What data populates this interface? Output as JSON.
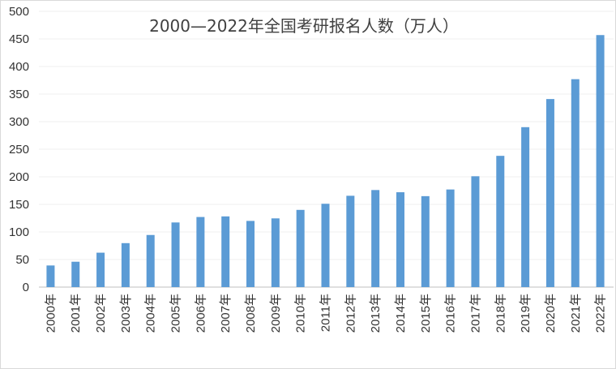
{
  "chart_data": {
    "type": "bar",
    "title": "2000—2022年全国考研报名人数（万人）",
    "xlabel": "",
    "ylabel": "",
    "ylim": [
      0,
      500
    ],
    "yticks": [
      0,
      50,
      100,
      150,
      200,
      250,
      300,
      350,
      400,
      450,
      500
    ],
    "grid": true,
    "bar_color": "#5B9BD5",
    "categories": [
      "2000年",
      "2001年",
      "2002年",
      "2003年",
      "2004年",
      "2005年",
      "2006年",
      "2007年",
      "2008年",
      "2009年",
      "2010年",
      "2011年",
      "2012年",
      "2013年",
      "2014年",
      "2015年",
      "2016年",
      "2017年",
      "2018年",
      "2019年",
      "2020年",
      "2021年",
      "2022年"
    ],
    "values": [
      39.2,
      46,
      62.4,
      79.7,
      94.5,
      117.2,
      127.1,
      128.2,
      120,
      124.6,
      140,
      151.1,
      165.6,
      176,
      172,
      164.9,
      177,
      201,
      238,
      290,
      341,
      377,
      457
    ]
  }
}
